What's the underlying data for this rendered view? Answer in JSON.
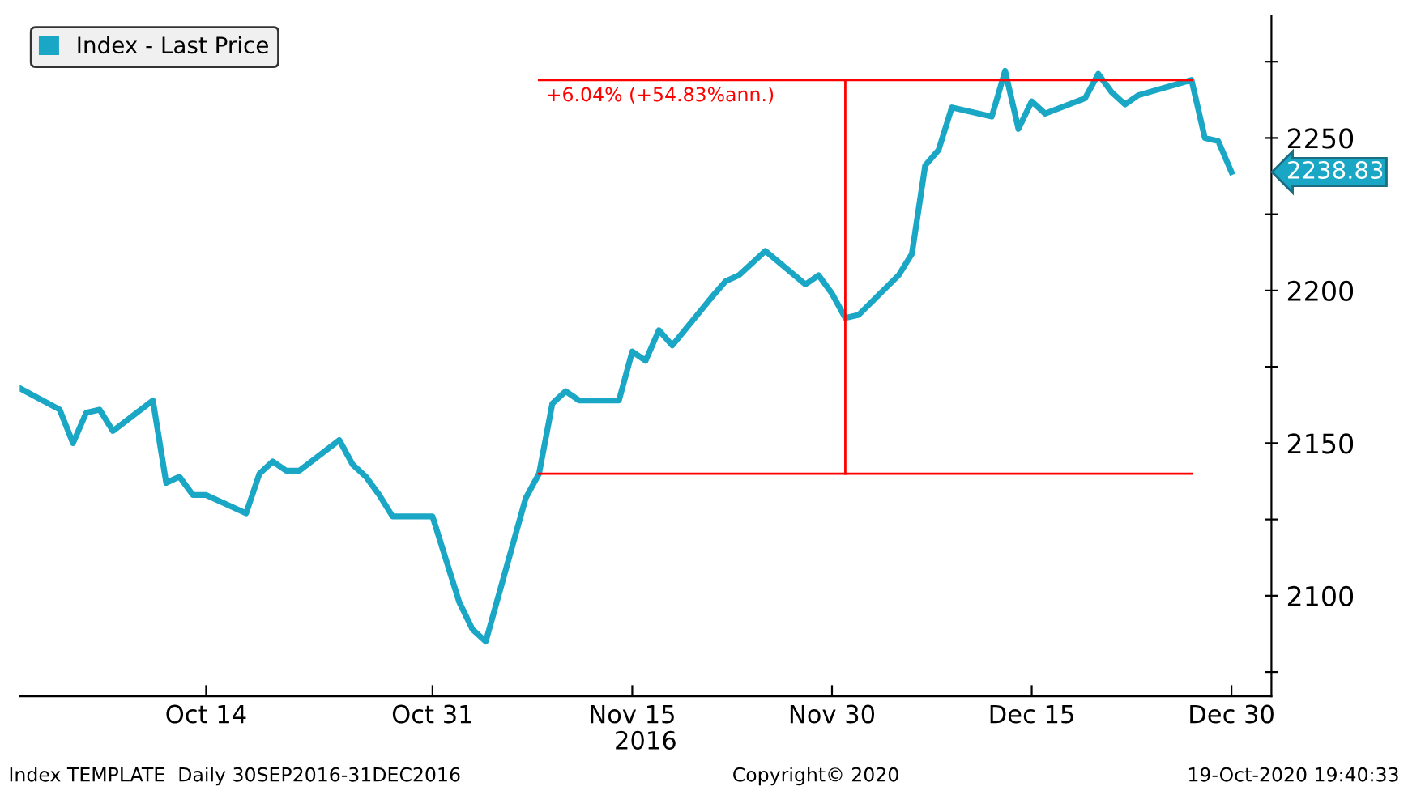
{
  "chart_data": {
    "type": "line",
    "x": [
      "2016-09-30",
      "2016-10-03",
      "2016-10-04",
      "2016-10-05",
      "2016-10-06",
      "2016-10-07",
      "2016-10-10",
      "2016-10-11",
      "2016-10-12",
      "2016-10-13",
      "2016-10-14",
      "2016-10-17",
      "2016-10-18",
      "2016-10-19",
      "2016-10-20",
      "2016-10-21",
      "2016-10-24",
      "2016-10-25",
      "2016-10-26",
      "2016-10-27",
      "2016-10-28",
      "2016-10-31",
      "2016-11-01",
      "2016-11-02",
      "2016-11-03",
      "2016-11-04",
      "2016-11-07",
      "2016-11-08",
      "2016-11-09",
      "2016-11-10",
      "2016-11-11",
      "2016-11-14",
      "2016-11-15",
      "2016-11-16",
      "2016-11-17",
      "2016-11-18",
      "2016-11-21",
      "2016-11-22",
      "2016-11-23",
      "2016-11-25",
      "2016-11-28",
      "2016-11-29",
      "2016-11-30",
      "2016-12-01",
      "2016-12-02",
      "2016-12-05",
      "2016-12-06",
      "2016-12-07",
      "2016-12-08",
      "2016-12-09",
      "2016-12-12",
      "2016-12-13",
      "2016-12-14",
      "2016-12-15",
      "2016-12-16",
      "2016-12-19",
      "2016-12-20",
      "2016-12-21",
      "2016-12-22",
      "2016-12-23",
      "2016-12-27",
      "2016-12-28",
      "2016-12-29",
      "2016-12-30"
    ],
    "series": [
      {
        "name": "Index - Last Price",
        "color": "#1aa7c5",
        "values": [
          2168,
          2161,
          2150,
          2160,
          2161,
          2154,
          2164,
          2137,
          2139,
          2133,
          2133,
          2127,
          2140,
          2144,
          2141,
          2141,
          2151,
          2143,
          2139,
          2133,
          2126,
          2126,
          2112,
          2098,
          2089,
          2085,
          2132,
          2140,
          2163,
          2167,
          2164,
          2164,
          2180,
          2177,
          2187,
          2182,
          2198,
          2203,
          2205,
          2213,
          2202,
          2205,
          2199,
          2191,
          2192,
          2205,
          2212,
          2241,
          2246,
          2260,
          2257,
          2272,
          2253,
          2262,
          2258,
          2263,
          2271,
          2265,
          2261,
          2264,
          2269,
          2250,
          2249,
          2238.83
        ]
      },
      {
        "color": "#ff0000",
        "x": [
          "2016-11-08",
          "2016-12-27"
        ],
        "values": [
          2140,
          2140
        ]
      },
      {
        "color": "#ff0000",
        "x": [
          "2016-11-08",
          "2016-12-27"
        ],
        "values": [
          2269,
          2269
        ]
      },
      {
        "color": "#ff0000",
        "x": [
          "2016-12-01",
          "2016-12-01"
        ],
        "values": [
          2140,
          2269
        ]
      }
    ],
    "xlabel": "2016",
    "xlim": [
      "2016-09-30",
      "2017-01-02"
    ],
    "xticks": [
      {
        "value": "2016-10-14",
        "label": "Oct 14"
      },
      {
        "value": "2016-10-31",
        "label": "Oct 31"
      },
      {
        "value": "2016-11-15",
        "label": "Nov 15"
      },
      {
        "value": "2016-11-30",
        "label": "Nov 30"
      },
      {
        "value": "2016-12-15",
        "label": "Dec 15"
      },
      {
        "value": "2016-12-30",
        "label": "Dec 30"
      }
    ],
    "ylim": [
      2067,
      2290
    ],
    "yticks": [
      {
        "value": 2075,
        "label": null
      },
      2100,
      {
        "value": 2125,
        "label": null
      },
      2150,
      {
        "value": 2175,
        "label": null
      },
      2200,
      {
        "value": 2225,
        "label": null
      },
      2250,
      {
        "value": 2275,
        "label": null
      }
    ],
    "annotations": [
      {
        "text": "+6.04% (+54.83%ann.)",
        "x": "2016-11-08",
        "y": 2269
      },
      {
        "text": "2238.83",
        "x": "2016-12-30",
        "y": 2238.83
      },
      "Index TEMPLATE  Daily 30SEP2016-31DEC2016",
      "Copyright© 2020",
      "19-Oct-2020 19:40:33"
    ],
    "legend": "top left",
    "grid": false
  }
}
